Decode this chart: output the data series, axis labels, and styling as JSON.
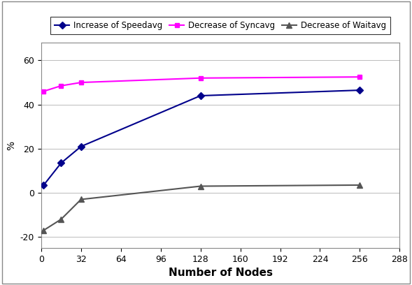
{
  "x_values": [
    2,
    16,
    32,
    128,
    256
  ],
  "speed_avg": [
    3.5,
    13.5,
    21,
    44,
    46.5
  ],
  "sync_avg": [
    46,
    48.5,
    50,
    52,
    52.5
  ],
  "wait_avg": [
    -17,
    -12,
    -3,
    3,
    3.5
  ],
  "x_label": "Number of Nodes",
  "y_label": "%",
  "x_ticks": [
    0,
    32,
    64,
    96,
    128,
    160,
    192,
    224,
    256,
    288
  ],
  "x_tick_labels": [
    "0",
    "32",
    "64",
    "96",
    "128",
    "160",
    "192",
    "224",
    "256",
    "288"
  ],
  "y_ticks": [
    -20,
    0,
    20,
    40,
    60
  ],
  "xlim": [
    0,
    288
  ],
  "ylim": [
    -25,
    68
  ],
  "legend_labels": [
    "Increase of Speedavg",
    "Decrease of Syncavg",
    "Decrease of Waitavg"
  ],
  "line_colors": [
    "#00008B",
    "#FF00FF",
    "#555555"
  ],
  "marker_styles": [
    "D",
    "s",
    "^"
  ],
  "marker_sizes": [
    5,
    5,
    6
  ],
  "grid_color": "#BBBBBB",
  "plot_bg_color": "#FFFFFF",
  "fig_bg_color": "#FFFFFF",
  "border_color": "#888888",
  "linewidth": 1.5,
  "xlabel_fontsize": 11,
  "ylabel_fontsize": 10,
  "tick_fontsize": 9,
  "legend_fontsize": 8.5
}
